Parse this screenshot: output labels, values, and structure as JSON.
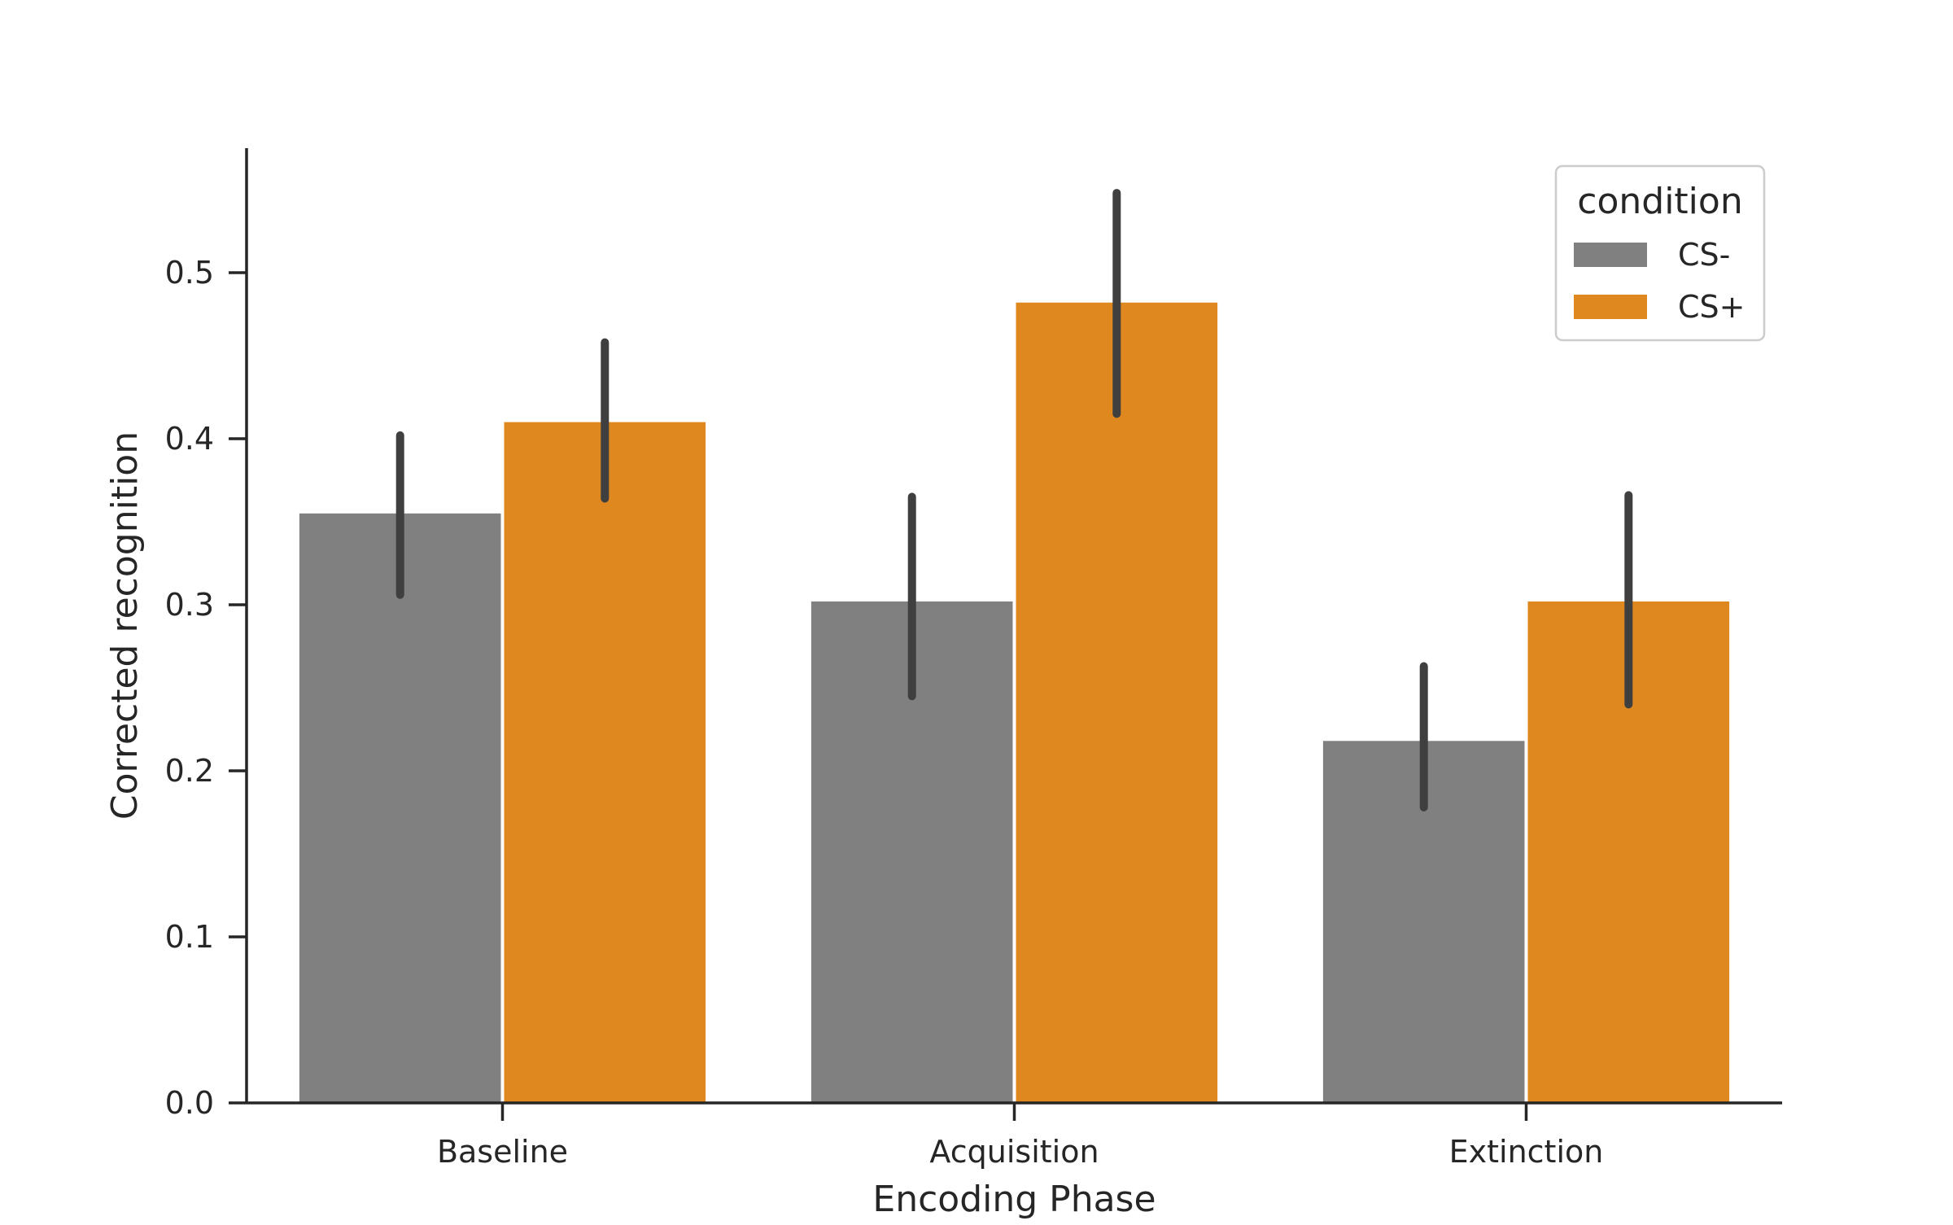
{
  "chart_data": {
    "type": "bar",
    "xlabel": "Encoding Phase",
    "ylabel": "Corrected recognition",
    "categories": [
      "Baseline",
      "Acquisition",
      "Extinction"
    ],
    "ylim": [
      0,
      0.575
    ],
    "yticks": [
      0.0,
      0.1,
      0.2,
      0.3,
      0.4,
      0.5
    ],
    "ytick_labels": [
      "0.0",
      "0.1",
      "0.2",
      "0.3",
      "0.4",
      "0.5"
    ],
    "series": [
      {
        "name": "CS-",
        "color": "#808080",
        "values": [
          0.355,
          0.302,
          0.218
        ],
        "ci_low": [
          0.306,
          0.245,
          0.178
        ],
        "ci_high": [
          0.402,
          0.365,
          0.263
        ]
      },
      {
        "name": "CS+",
        "color": "#e08820",
        "values": [
          0.41,
          0.482,
          0.302
        ],
        "ci_low": [
          0.364,
          0.415,
          0.24
        ],
        "ci_high": [
          0.458,
          0.548,
          0.366
        ]
      }
    ],
    "legend": {
      "title": "condition",
      "position": "top-right"
    },
    "grid": false
  }
}
